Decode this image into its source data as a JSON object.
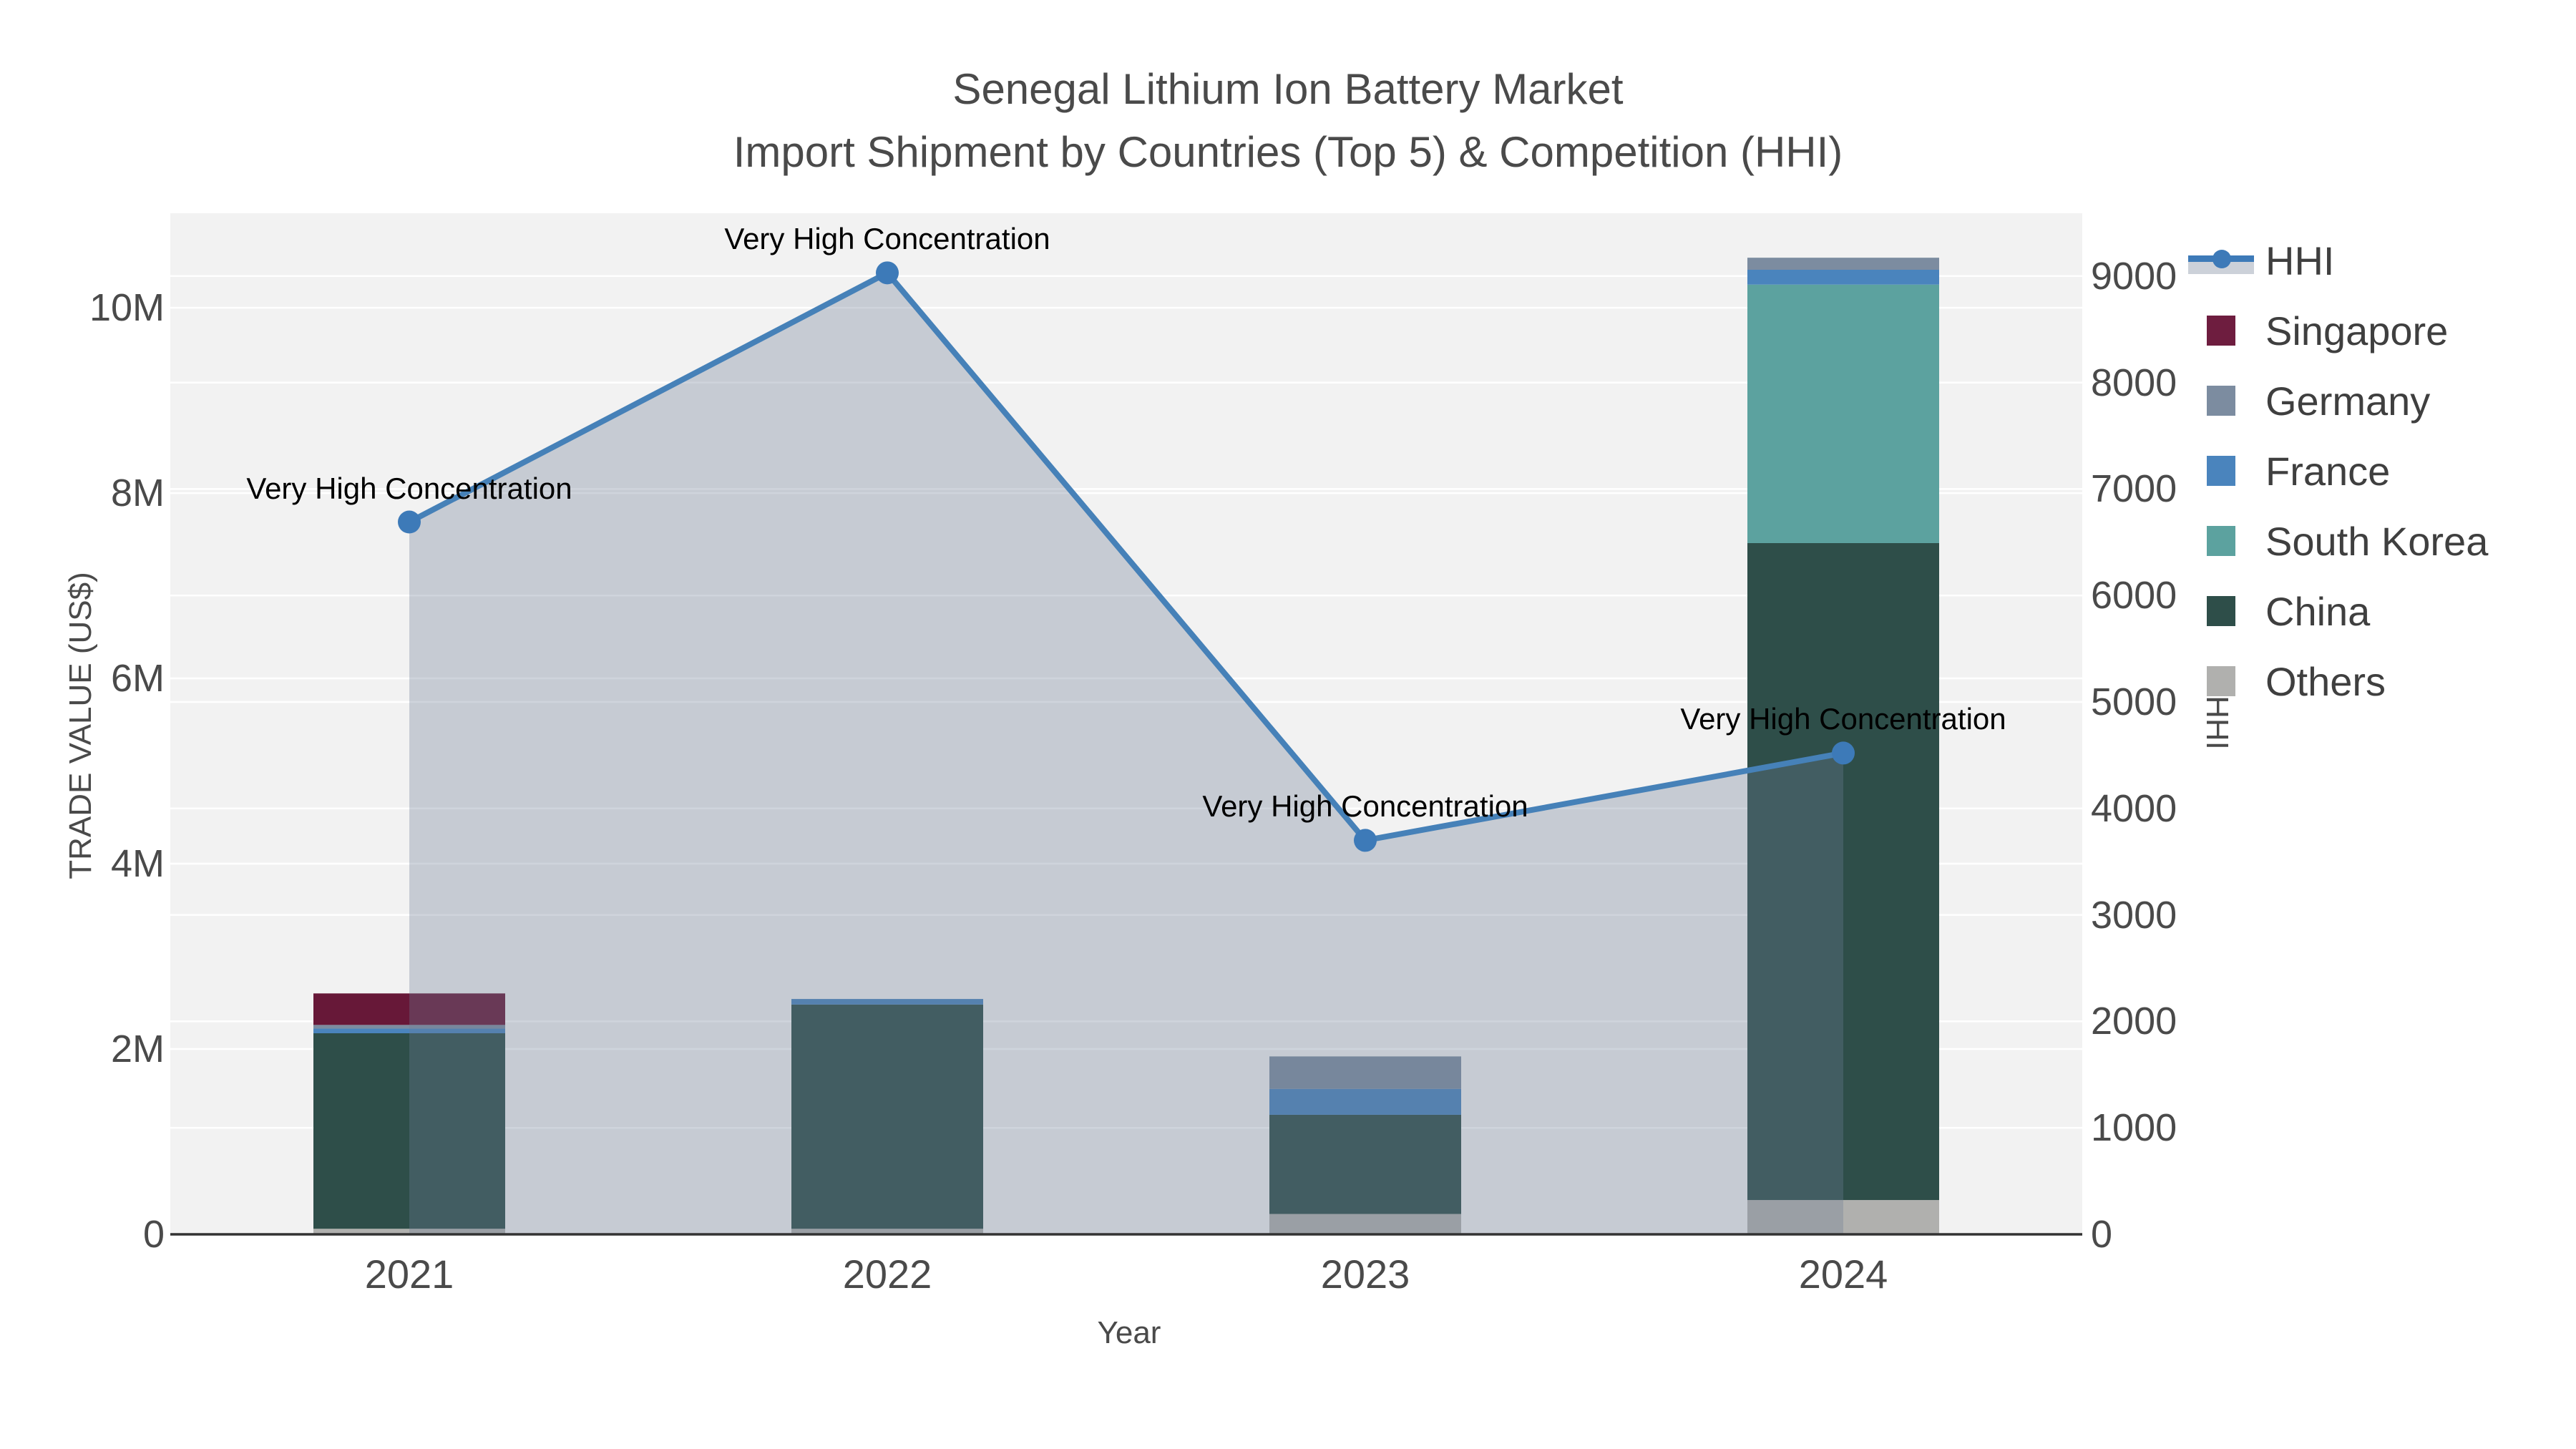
{
  "title": {
    "line1": "Senegal Lithium Ion Battery Market",
    "line2": "Import Shipment by Countries (Top 5) & Competition (HHI)"
  },
  "axes": {
    "x_title": "Year",
    "y_left_title": "TRADE VALUE (US$)",
    "y_right_title": "HHI",
    "y_left_ticks": [
      "0",
      "2M",
      "4M",
      "6M",
      "8M",
      "10M"
    ],
    "y_right_ticks": [
      "0",
      "1000",
      "2000",
      "3000",
      "4000",
      "5000",
      "6000",
      "7000",
      "8000",
      "9000"
    ]
  },
  "legend": {
    "items": [
      {
        "label": "HHI",
        "type": "line",
        "color": "#3d7ab8",
        "fill": "#ccd1d9"
      },
      {
        "label": "Singapore",
        "type": "swatch",
        "color": "#6e1d3f"
      },
      {
        "label": "Germany",
        "type": "swatch",
        "color": "#7c8ca0"
      },
      {
        "label": "France",
        "type": "swatch",
        "color": "#4a84bd"
      },
      {
        "label": "South Korea",
        "type": "swatch",
        "color": "#5ca29f"
      },
      {
        "label": "China",
        "type": "swatch",
        "color": "#2e4e49"
      },
      {
        "label": "Others",
        "type": "swatch",
        "color": "#b0b0ae"
      }
    ]
  },
  "chart_data": {
    "type": "combo-stacked-bar-line",
    "categories": [
      "2021",
      "2022",
      "2023",
      "2024"
    ],
    "bar_value_unit": "USD millions",
    "series": [
      {
        "name": "Others",
        "color": "#b0b0ae",
        "values": [
          0.06,
          0.06,
          0.22,
          0.37
        ]
      },
      {
        "name": "China",
        "color": "#2e4e49",
        "values": [
          2.11,
          2.42,
          1.07,
          7.09
        ]
      },
      {
        "name": "South Korea",
        "color": "#5ca29f",
        "values": [
          0.0,
          0.0,
          0.0,
          2.79
        ]
      },
      {
        "name": "France",
        "color": "#4a84bd",
        "values": [
          0.05,
          0.06,
          0.28,
          0.16
        ]
      },
      {
        "name": "Germany",
        "color": "#7c8ca0",
        "values": [
          0.04,
          0.0,
          0.35,
          0.13
        ]
      },
      {
        "name": "Singapore",
        "color": "#671838",
        "values": [
          0.34,
          0.0,
          0.0,
          0.0
        ]
      }
    ],
    "line": {
      "name": "HHI",
      "values": [
        6690,
        9030,
        3700,
        4520
      ],
      "color": "#4681b8",
      "marker_color": "#3d7ab8",
      "fill_color": "rgba(110,125,150,0.33)"
    },
    "annotations": [
      {
        "category": "2021",
        "text": "Very High Concentration"
      },
      {
        "category": "2022",
        "text": "Very High Concentration"
      },
      {
        "category": "2023",
        "text": "Very High Concentration"
      },
      {
        "category": "2024",
        "text": "Very High Concentration"
      }
    ],
    "title": "Senegal Lithium Ion Battery Market Import Shipment by Countries (Top 5) & Competition (HHI)",
    "xlabel": "Year",
    "ylabel_left": "TRADE VALUE (US$)",
    "ylabel_right": "HHI",
    "ylim_left_label_max": "10M",
    "ylim_left_axis_max_millions": 11.02,
    "ylim_right": [
      0,
      9590
    ],
    "grid": true,
    "legend_position": "right",
    "plot_bg": "#f2f2f2",
    "grid_color": "#ffffff",
    "axis_line_color": "#333333"
  }
}
